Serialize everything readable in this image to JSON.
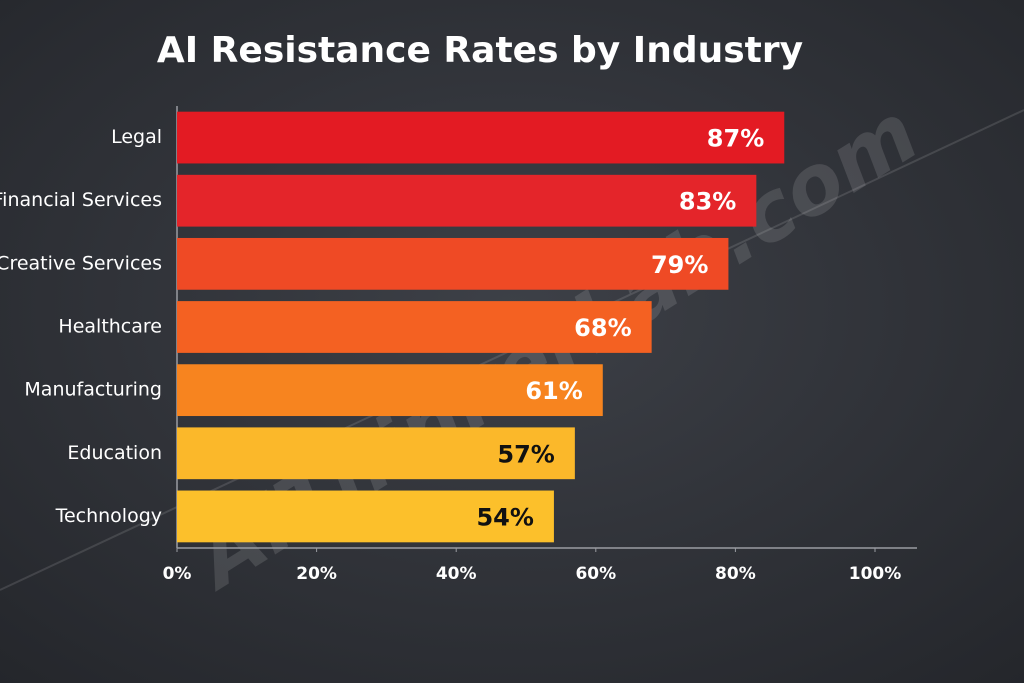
{
  "chart_data": {
    "type": "bar",
    "orientation": "horizontal",
    "title": "AI Resistance Rates by Industry",
    "watermark": "AIThinkerLab.com",
    "categories": [
      "Legal",
      "Financial Services",
      "Creative Services",
      "Healthcare",
      "Manufacturing",
      "Education",
      "Technology"
    ],
    "values": [
      87,
      83,
      79,
      68,
      61,
      57,
      54
    ],
    "value_labels": [
      "87%",
      "83%",
      "79%",
      "68%",
      "61%",
      "57%",
      "54%"
    ],
    "colors": [
      "#e31b23",
      "#e4252a",
      "#ef4a25",
      "#f46122",
      "#f7841f",
      "#fbb82a",
      "#fcc02b"
    ],
    "xlim": [
      0,
      100
    ],
    "xticks": [
      {
        "value": 0,
        "label": "0%"
      },
      {
        "value": 20,
        "label": "20%"
      },
      {
        "value": 40,
        "label": "40%"
      },
      {
        "value": 60,
        "label": "60%"
      },
      {
        "value": 80,
        "label": "80%"
      },
      {
        "value": 100,
        "label": "100%"
      }
    ],
    "grid": false
  }
}
